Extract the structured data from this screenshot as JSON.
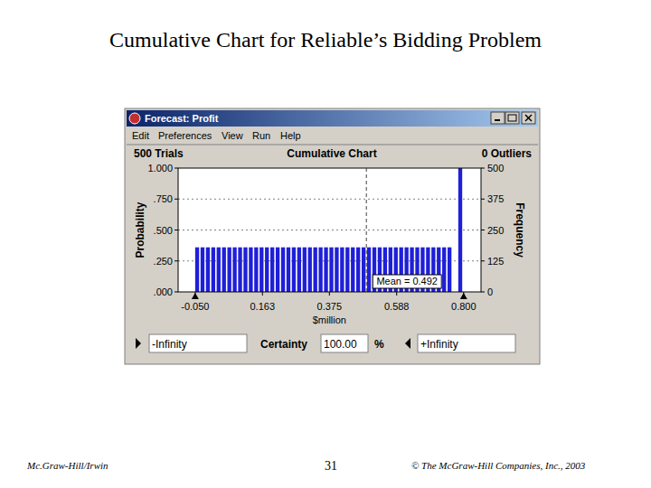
{
  "slide": {
    "title": "Cumulative Chart for Reliable’s Bidding Problem",
    "footer_left": "Mc.Graw-Hill/Irwin",
    "page": "31",
    "footer_right": "© The McGraw-Hill Companies, Inc., 2003"
  },
  "window": {
    "title": "Forecast: Profit",
    "menu": [
      "Edit",
      "Preferences",
      "View",
      "Run",
      "Help"
    ],
    "trials": "500 Trials",
    "outliers": "0 Outliers",
    "certainty": {
      "low": "-Infinity",
      "label": "Certainty",
      "value": {
        "value": 100,
        "label": "100.00"
      },
      "unit": "%",
      "high": "+Infinity"
    }
  },
  "chart_data": {
    "type": "histogram",
    "title": "Cumulative Chart",
    "color": "#1f1fd8",
    "xlabel": "$million",
    "ylabel": "Probability",
    "y2label": "Frequency",
    "bins": [
      -0.05,
      -0.033,
      -0.016,
      0.001,
      0.018,
      0.035,
      0.052,
      0.069,
      0.086,
      0.103,
      0.12,
      0.137,
      0.154,
      0.171,
      0.188,
      0.205,
      0.222,
      0.239,
      0.256,
      0.273,
      0.29,
      0.307,
      0.324,
      0.341,
      0.358,
      0.375,
      0.392,
      0.409,
      0.426,
      0.443,
      0.46,
      0.477,
      0.494,
      0.511,
      0.528,
      0.545,
      0.562,
      0.579,
      0.596,
      0.613,
      0.63,
      0.647,
      0.664,
      0.681,
      0.698,
      0.715,
      0.732,
      0.749,
      0.766,
      0.783,
      0.8
    ],
    "values": [
      0.36,
      0.36,
      0.36,
      0.36,
      0.36,
      0.36,
      0.36,
      0.36,
      0.36,
      0.36,
      0.36,
      0.36,
      0.36,
      0.36,
      0.36,
      0.36,
      0.36,
      0.36,
      0.36,
      0.36,
      0.36,
      0.36,
      0.36,
      0.36,
      0.36,
      0.36,
      0.36,
      0.36,
      0.36,
      0.36,
      0.36,
      0.36,
      0.36,
      0.36,
      0.36,
      0.36,
      0.36,
      0.36,
      0.36,
      0.36,
      0.36,
      0.36,
      0.36,
      0.36,
      0.36,
      0.36,
      0.36,
      0.36,
      0,
      1.0
    ],
    "xlim": [
      -0.104,
      0.855
    ],
    "xticks": [
      {
        "value": -0.05,
        "label": "-0.050"
      },
      0.163,
      0.375,
      0.588,
      {
        "value": 0.8,
        "label": "0.800"
      }
    ],
    "ylim": [
      0,
      1
    ],
    "yticks": [
      {
        "value": 0,
        "label": ".000"
      },
      {
        "value": 0.25,
        "label": ".250"
      },
      {
        "value": 0.5,
        "label": ".500"
      },
      {
        "value": 0.75,
        "label": ".750"
      },
      {
        "value": 1,
        "label": "1.000"
      }
    ],
    "y2lim": [
      0,
      500
    ],
    "y2ticks": [
      0,
      125,
      250,
      375,
      500
    ],
    "grid": true,
    "annotations": [
      {
        "x": 0.492,
        "text": "Mean = 0.492"
      }
    ]
  }
}
